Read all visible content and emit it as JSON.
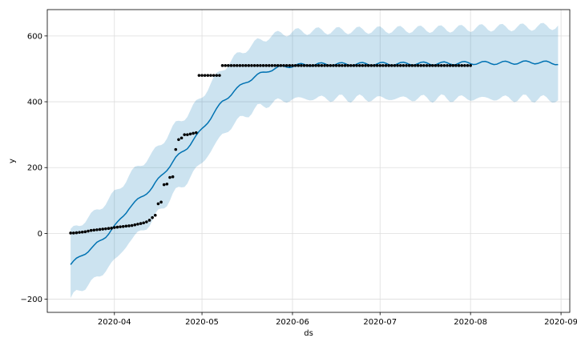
{
  "chart_data": {
    "type": "line",
    "title": "",
    "xlabel": "ds",
    "ylabel": "y",
    "grid": true,
    "legend": "none",
    "x_range": [
      "2020-03-09",
      "2020-09-04"
    ],
    "ylim": [
      -240,
      680
    ],
    "x_ticks": [
      "2020-04-01",
      "2020-05-01",
      "2020-06-01",
      "2020-07-01",
      "2020-08-01",
      "2020-09-01"
    ],
    "x_tick_labels": [
      "2020-04",
      "2020-05",
      "2020-06",
      "2020-07",
      "2020-08",
      "2020-09"
    ],
    "y_ticks": [
      -200,
      0,
      200,
      400,
      600
    ],
    "y_tick_labels": [
      "−200",
      "0",
      "200",
      "400",
      "600"
    ],
    "colors": {
      "forecast_line": "#0072B2",
      "uncertainty_band": "#0072B2",
      "observations": "#000000",
      "grid": "#dddddd"
    },
    "observations": [
      {
        "start": "2020-03-17",
        "values": [
          1,
          1,
          2,
          3,
          4,
          5,
          7,
          9,
          10,
          11,
          12,
          13,
          14,
          15,
          16,
          18,
          19,
          20,
          21,
          22,
          23,
          24,
          26,
          28,
          30,
          32,
          35,
          40,
          48,
          55,
          90,
          95,
          148,
          150,
          170,
          172,
          255,
          285,
          290,
          300,
          300,
          302,
          304,
          306,
          480,
          480,
          480,
          480,
          480,
          480,
          480,
          480,
          510
        ]
      },
      {
        "start": "2020-05-09",
        "constant": 510,
        "end": "2020-08-01"
      }
    ],
    "forecast": [
      {
        "x": "2020-03-17",
        "yhat": -95,
        "lower": -200,
        "upper": 5
      },
      {
        "x": "2020-03-21",
        "yhat": -65,
        "lower": -165,
        "upper": 35
      },
      {
        "x": "2020-03-25",
        "yhat": -40,
        "lower": -145,
        "upper": 60
      },
      {
        "x": "2020-03-29",
        "yhat": -8,
        "lower": -110,
        "upper": 95
      },
      {
        "x": "2020-04-02",
        "yhat": 30,
        "lower": -75,
        "upper": 130
      },
      {
        "x": "2020-04-06",
        "yhat": 78,
        "lower": -25,
        "upper": 175
      },
      {
        "x": "2020-04-10",
        "yhat": 108,
        "lower": 5,
        "upper": 210
      },
      {
        "x": "2020-04-14",
        "yhat": 140,
        "lower": 38,
        "upper": 240
      },
      {
        "x": "2020-04-18",
        "yhat": 185,
        "lower": 85,
        "upper": 285
      },
      {
        "x": "2020-04-22",
        "yhat": 228,
        "lower": 125,
        "upper": 330
      },
      {
        "x": "2020-04-26",
        "yhat": 262,
        "lower": 160,
        "upper": 362
      },
      {
        "x": "2020-04-30",
        "yhat": 305,
        "lower": 205,
        "upper": 405
      },
      {
        "x": "2020-05-04",
        "yhat": 352,
        "lower": 250,
        "upper": 455
      },
      {
        "x": "2020-05-08",
        "yhat": 400,
        "lower": 300,
        "upper": 500
      },
      {
        "x": "2020-05-12",
        "yhat": 432,
        "lower": 332,
        "upper": 532
      },
      {
        "x": "2020-05-16",
        "yhat": 460,
        "lower": 360,
        "upper": 560
      },
      {
        "x": "2020-05-20",
        "yhat": 480,
        "lower": 380,
        "upper": 582
      },
      {
        "x": "2020-05-24",
        "yhat": 496,
        "lower": 395,
        "upper": 598
      },
      {
        "x": "2020-05-28",
        "yhat": 505,
        "lower": 402,
        "upper": 607
      },
      {
        "x": "2020-06-01",
        "yhat": 510,
        "lower": 408,
        "upper": 612
      },
      {
        "x": "2020-06-08",
        "yhat": 513,
        "lower": 410,
        "upper": 615
      },
      {
        "x": "2020-06-15",
        "yhat": 514,
        "lower": 410,
        "upper": 616
      },
      {
        "x": "2020-06-22",
        "yhat": 514,
        "lower": 410,
        "upper": 617
      },
      {
        "x": "2020-06-29",
        "yhat": 515,
        "lower": 410,
        "upper": 618
      },
      {
        "x": "2020-07-06",
        "yhat": 515,
        "lower": 410,
        "upper": 619
      },
      {
        "x": "2020-07-13",
        "yhat": 516,
        "lower": 410,
        "upper": 620
      },
      {
        "x": "2020-07-20",
        "yhat": 516,
        "lower": 410,
        "upper": 621
      },
      {
        "x": "2020-07-27",
        "yhat": 517,
        "lower": 410,
        "upper": 622
      },
      {
        "x": "2020-08-03",
        "yhat": 518,
        "lower": 410,
        "upper": 624
      },
      {
        "x": "2020-08-10",
        "yhat": 518,
        "lower": 410,
        "upper": 625
      },
      {
        "x": "2020-08-17",
        "yhat": 519,
        "lower": 410,
        "upper": 626
      },
      {
        "x": "2020-08-24",
        "yhat": 520,
        "lower": 410,
        "upper": 628
      },
      {
        "x": "2020-08-31",
        "yhat": 517,
        "lower": 405,
        "upper": 630
      }
    ],
    "weekly_wiggle": 5
  }
}
